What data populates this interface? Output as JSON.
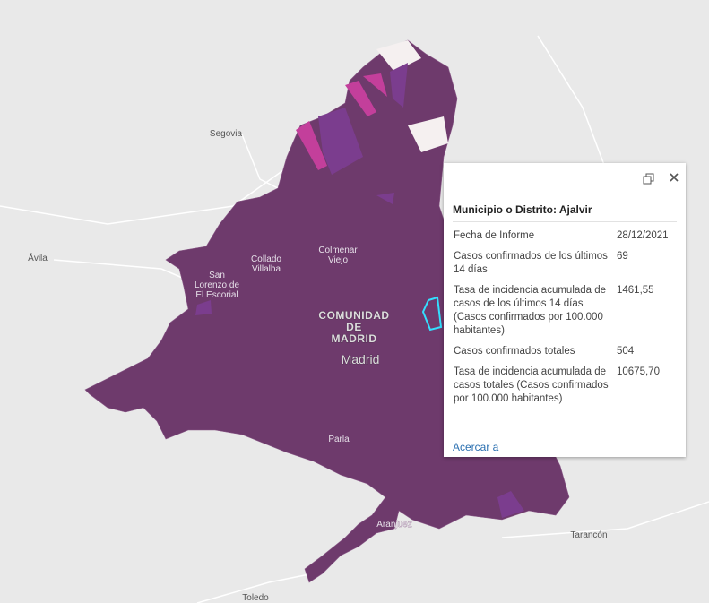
{
  "map": {
    "labels": [
      {
        "lines": [
          "Segovia"
        ]
      },
      {
        "lines": [
          "Ávila"
        ]
      },
      {
        "lines": [
          "Collado",
          "Villalba"
        ]
      },
      {
        "lines": [
          "Colmenar",
          "Viejo"
        ]
      },
      {
        "lines": [
          "San",
          "Lorenzo de",
          "El Escorial"
        ]
      },
      {
        "lines": [
          "COMUNIDAD",
          "DE",
          "MADRID"
        ]
      },
      {
        "lines": [
          "Madrid"
        ]
      },
      {
        "lines": [
          "Parla"
        ]
      },
      {
        "lines": [
          "Aranjuez"
        ]
      },
      {
        "lines": [
          "Tarancón"
        ]
      },
      {
        "lines": [
          "Toledo"
        ]
      }
    ]
  },
  "popup": {
    "title": "Municipio o Distrito: Ajalvir",
    "rows": [
      [
        "Fecha de Informe",
        "28/12/2021"
      ],
      [
        "Casos confirmados de los últimos 14 días",
        69
      ],
      [
        "Tasa de incidencia acumulada de casos de los últimos 14 días (Casos confirmados por 100.000 habitantes)",
        "1461,55"
      ],
      [
        "Casos confirmados totales",
        504
      ],
      [
        "Tasa de incidencia acumulada de casos totales (Casos confirmados por 100.000 habitantes)",
        "10675,70"
      ]
    ],
    "link": "Acercar a"
  }
}
